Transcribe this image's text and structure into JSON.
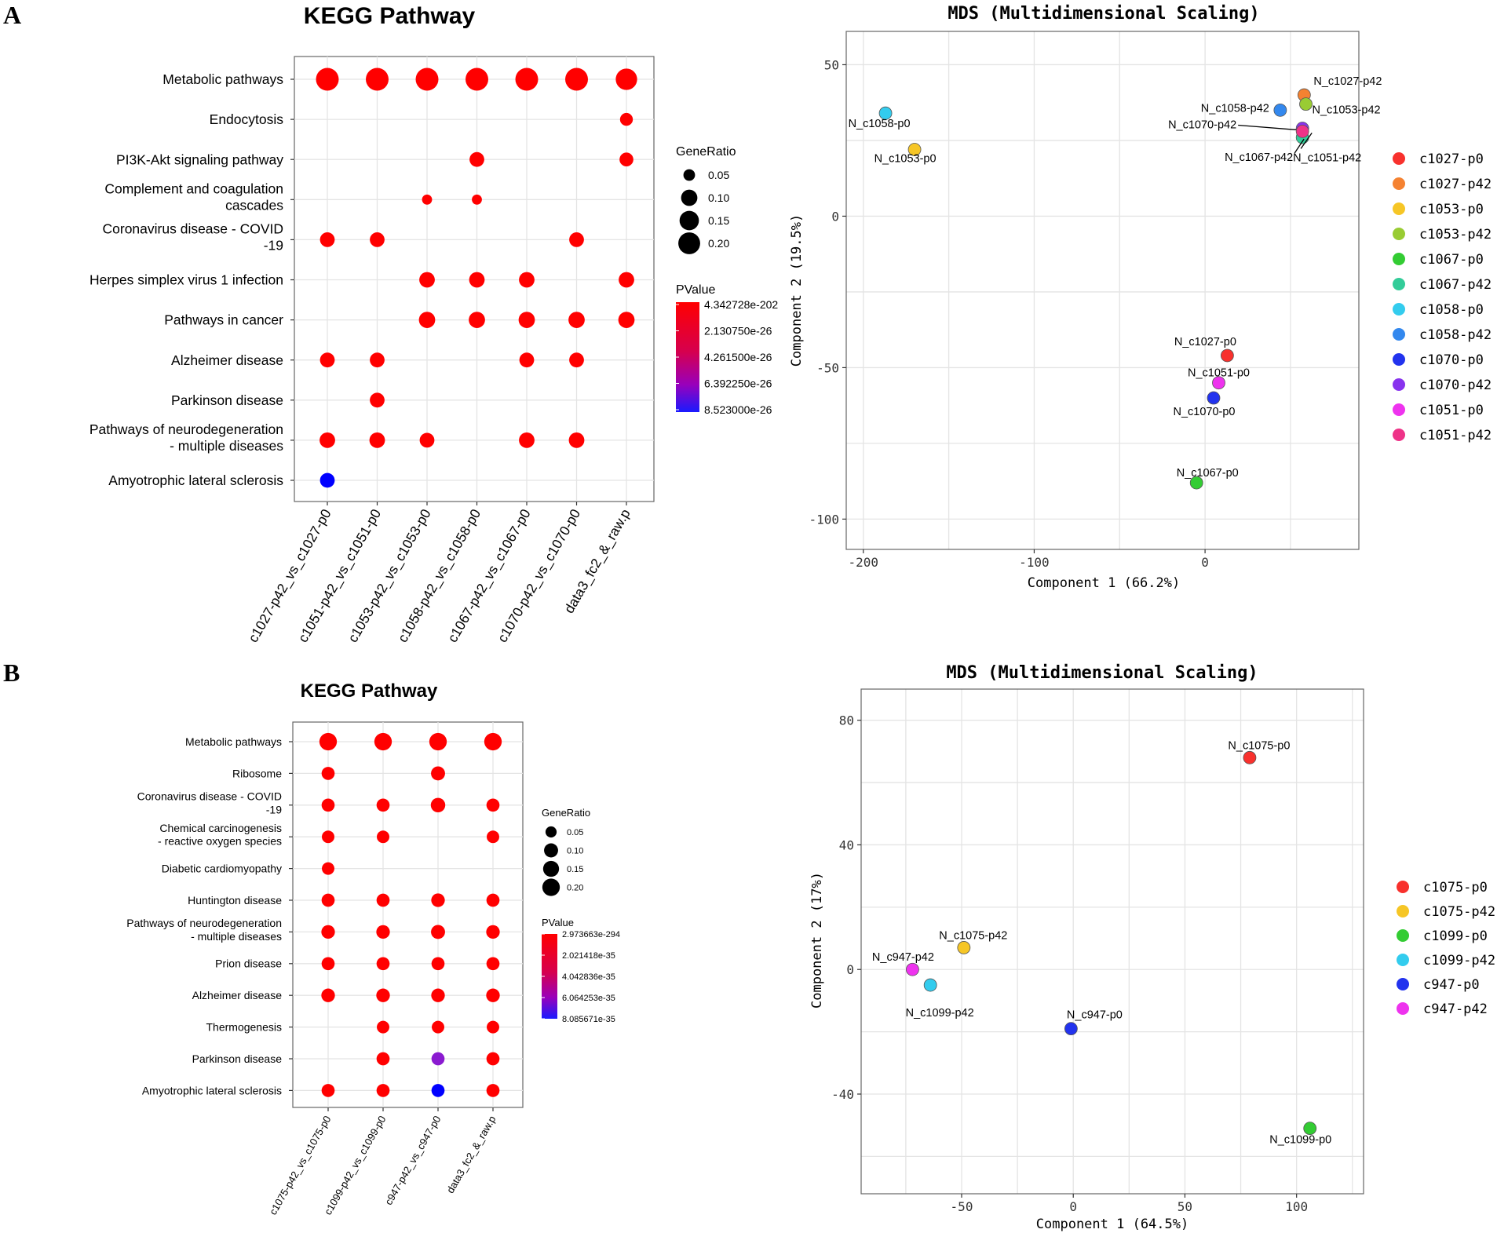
{
  "colors": {
    "red": "#ff0000",
    "blue": "#0000ff",
    "gradient_top": "#ff0000",
    "gradient_mid": "#cc0055",
    "gradient_bottom": "#1a1aff",
    "grid": "#e4e4e4",
    "frame": "#666666"
  },
  "panels": [
    {
      "letter": "A",
      "chart_data": [
        {
          "type": "dotplot",
          "title": "KEGG Pathway",
          "categories_y": [
            "Metabolic pathways",
            "Endocytosis",
            "PI3K-Akt signaling pathway",
            [
              "Complement and coagulation",
              "cascades"
            ],
            [
              "Coronavirus disease - COVID",
              "-19"
            ],
            "Herpes simplex virus 1 infection",
            "Pathways in cancer",
            "Alzheimer disease",
            "Parkinson disease",
            [
              "Pathways of neurodegeneration",
              "- multiple diseases"
            ],
            "Amyotrophic lateral sclerosis"
          ],
          "categories_x": [
            "c1027-p42_vs_c1027-p0",
            "c1051-p42_vs_c1051-p0",
            "c1053-p42_vs_c1053-p0",
            "c1058-p42_vs_c1058-p0",
            "c1067-p42_vs_c1067-p0",
            "c1070-p42_vs_c1070-p0",
            "data3_fc2_&_raw.p"
          ],
          "size_legend": {
            "title": "GeneRatio",
            "values": [
              "0.05",
              "0.10",
              "0.15",
              "0.20"
            ]
          },
          "color_legend": {
            "title": "PValue",
            "labels": [
              "4.342728e-202",
              "2.130750e-26",
              "4.261500e-26",
              "6.392250e-26",
              "8.523000e-26"
            ]
          },
          "points": [
            {
              "x": 0,
              "y": 0,
              "size": 0.22,
              "color": "red"
            },
            {
              "x": 1,
              "y": 0,
              "size": 0.22,
              "color": "red"
            },
            {
              "x": 2,
              "y": 0,
              "size": 0.22,
              "color": "red"
            },
            {
              "x": 3,
              "y": 0,
              "size": 0.22,
              "color": "red"
            },
            {
              "x": 4,
              "y": 0,
              "size": 0.22,
              "color": "red"
            },
            {
              "x": 5,
              "y": 0,
              "size": 0.22,
              "color": "red"
            },
            {
              "x": 6,
              "y": 0,
              "size": 0.19,
              "color": "red"
            },
            {
              "x": 6,
              "y": 1,
              "size": 0.06,
              "color": "red"
            },
            {
              "x": 3,
              "y": 2,
              "size": 0.08,
              "color": "red"
            },
            {
              "x": 6,
              "y": 2,
              "size": 0.07,
              "color": "red"
            },
            {
              "x": 2,
              "y": 3,
              "size": 0.04,
              "color": "red"
            },
            {
              "x": 3,
              "y": 3,
              "size": 0.04,
              "color": "red"
            },
            {
              "x": 0,
              "y": 4,
              "size": 0.08,
              "color": "red"
            },
            {
              "x": 1,
              "y": 4,
              "size": 0.08,
              "color": "red"
            },
            {
              "x": 5,
              "y": 4,
              "size": 0.08,
              "color": "red"
            },
            {
              "x": 2,
              "y": 5,
              "size": 0.09,
              "color": "red"
            },
            {
              "x": 3,
              "y": 5,
              "size": 0.09,
              "color": "red"
            },
            {
              "x": 4,
              "y": 5,
              "size": 0.09,
              "color": "red"
            },
            {
              "x": 6,
              "y": 5,
              "size": 0.09,
              "color": "red"
            },
            {
              "x": 2,
              "y": 6,
              "size": 0.1,
              "color": "red"
            },
            {
              "x": 3,
              "y": 6,
              "size": 0.1,
              "color": "red"
            },
            {
              "x": 4,
              "y": 6,
              "size": 0.1,
              "color": "red"
            },
            {
              "x": 5,
              "y": 6,
              "size": 0.1,
              "color": "red"
            },
            {
              "x": 6,
              "y": 6,
              "size": 0.1,
              "color": "red"
            },
            {
              "x": 0,
              "y": 7,
              "size": 0.08,
              "color": "red"
            },
            {
              "x": 1,
              "y": 7,
              "size": 0.08,
              "color": "red"
            },
            {
              "x": 4,
              "y": 7,
              "size": 0.08,
              "color": "red"
            },
            {
              "x": 5,
              "y": 7,
              "size": 0.08,
              "color": "red"
            },
            {
              "x": 1,
              "y": 8,
              "size": 0.08,
              "color": "red"
            },
            {
              "x": 0,
              "y": 9,
              "size": 0.09,
              "color": "red"
            },
            {
              "x": 1,
              "y": 9,
              "size": 0.09,
              "color": "red"
            },
            {
              "x": 2,
              "y": 9,
              "size": 0.08,
              "color": "red"
            },
            {
              "x": 4,
              "y": 9,
              "size": 0.09,
              "color": "red"
            },
            {
              "x": 5,
              "y": 9,
              "size": 0.09,
              "color": "red"
            },
            {
              "x": 0,
              "y": 10,
              "size": 0.08,
              "color": "blue"
            }
          ]
        },
        {
          "type": "scatter",
          "title": "MDS (Multidimensional Scaling)",
          "xlabel": "Component 1 (66.2%)",
          "ylabel": "Component 2 (19.5%)",
          "xlim": [
            -210,
            90
          ],
          "ylim": [
            -110,
            61
          ],
          "xticks": [
            -200,
            -100,
            0
          ],
          "yticks": [
            50,
            0,
            -50,
            -100
          ],
          "xgrid": [
            -200,
            -150,
            -100,
            -50,
            0,
            50
          ],
          "ygrid": [
            50,
            25,
            0,
            -25,
            -50,
            -75,
            -100
          ],
          "legend": [
            {
              "name": "c1027-p0",
              "color": "#f8312d"
            },
            {
              "name": "c1027-p42",
              "color": "#f58231"
            },
            {
              "name": "c1053-p0",
              "color": "#f6c626"
            },
            {
              "name": "c1053-p42",
              "color": "#99cc33"
            },
            {
              "name": "c1067-p0",
              "color": "#33cc33"
            },
            {
              "name": "c1067-p42",
              "color": "#33cc99"
            },
            {
              "name": "c1058-p0",
              "color": "#33ccee"
            },
            {
              "name": "c1058-p42",
              "color": "#3388ee"
            },
            {
              "name": "c1070-p0",
              "color": "#2233ee"
            },
            {
              "name": "c1070-p42",
              "color": "#8833ee"
            },
            {
              "name": "c1051-p0",
              "color": "#ee33ee"
            },
            {
              "name": "c1051-p42",
              "color": "#ee3388"
            }
          ],
          "points": [
            {
              "x": 58,
              "y": 40,
              "label": "N_c1027-p42",
              "color": "#f58231"
            },
            {
              "x": 44,
              "y": 35,
              "label": "N_c1058-p42",
              "color": "#3388ee"
            },
            {
              "x": 59,
              "y": 37,
              "label": "N_c1053-p42",
              "color": "#99cc33"
            },
            {
              "x": 57,
              "y": 26,
              "label": "N_c1067-p42",
              "color": "#33cc99"
            },
            {
              "x": 57,
              "y": 29,
              "label": "N_c1070-p42",
              "color": "#8833ee"
            },
            {
              "x": 57,
              "y": 28,
              "label": "N_c1051-p42",
              "color": "#ee3388"
            },
            {
              "x": -187,
              "y": 34,
              "label": "N_c1058-p0",
              "color": "#33ccee"
            },
            {
              "x": -170,
              "y": 22,
              "label": "N_c1053-p0",
              "color": "#f6c626"
            },
            {
              "x": 13,
              "y": -46,
              "label": "N_c1027-p0",
              "color": "#f8312d"
            },
            {
              "x": 8,
              "y": -55,
              "label": "N_c1051-p0",
              "color": "#ee33ee"
            },
            {
              "x": 5,
              "y": -60,
              "label": "N_c1070-p0",
              "color": "#2233ee"
            },
            {
              "x": -5,
              "y": -88,
              "label": "N_c1067-p0",
              "color": "#33cc33"
            }
          ]
        }
      ]
    },
    {
      "letter": "B",
      "chart_data": [
        {
          "type": "dotplot",
          "title": "KEGG Pathway",
          "categories_y": [
            "Metabolic pathways",
            "Ribosome",
            [
              "Coronavirus disease - COVID",
              "-19"
            ],
            [
              "Chemical carcinogenesis",
              "- reactive oxygen species"
            ],
            "Diabetic cardiomyopathy",
            "Huntington disease",
            [
              "Pathways of neurodegeneration",
              "- multiple diseases"
            ],
            "Prion disease",
            "Alzheimer disease",
            "Thermogenesis",
            "Parkinson disease",
            "Amyotrophic lateral sclerosis"
          ],
          "categories_x": [
            "c1075-p42_vs_c1075-p0",
            "c1099-p42_vs_c1099-p0",
            "c947-p42_vs_c947-p0",
            "data3_fc2_&_raw.p"
          ],
          "size_legend": {
            "title": "GeneRatio",
            "values": [
              "0.05",
              "0.10",
              "0.15",
              "0.20"
            ]
          },
          "color_legend": {
            "title": "PValue",
            "labels": [
              "2.973663e-294",
              "2.021418e-35",
              "4.042836e-35",
              "6.064253e-35",
              "8.085671e-35"
            ]
          },
          "points": [
            {
              "x": 0,
              "y": 0,
              "size": 0.2,
              "color": "red"
            },
            {
              "x": 1,
              "y": 0,
              "size": 0.2,
              "color": "red"
            },
            {
              "x": 2,
              "y": 0,
              "size": 0.2,
              "color": "red"
            },
            {
              "x": 3,
              "y": 0,
              "size": 0.2,
              "color": "red"
            },
            {
              "x": 0,
              "y": 1,
              "size": 0.08,
              "color": "red"
            },
            {
              "x": 2,
              "y": 1,
              "size": 0.1,
              "color": "red"
            },
            {
              "x": 0,
              "y": 2,
              "size": 0.08,
              "color": "red"
            },
            {
              "x": 1,
              "y": 2,
              "size": 0.08,
              "color": "red"
            },
            {
              "x": 2,
              "y": 2,
              "size": 0.11,
              "color": "red"
            },
            {
              "x": 3,
              "y": 2,
              "size": 0.08,
              "color": "red"
            },
            {
              "x": 0,
              "y": 3,
              "size": 0.07,
              "color": "red"
            },
            {
              "x": 1,
              "y": 3,
              "size": 0.07,
              "color": "red"
            },
            {
              "x": 3,
              "y": 3,
              "size": 0.07,
              "color": "red"
            },
            {
              "x": 0,
              "y": 4,
              "size": 0.07,
              "color": "red"
            },
            {
              "x": 0,
              "y": 5,
              "size": 0.08,
              "color": "red"
            },
            {
              "x": 1,
              "y": 5,
              "size": 0.08,
              "color": "red"
            },
            {
              "x": 2,
              "y": 5,
              "size": 0.09,
              "color": "red"
            },
            {
              "x": 3,
              "y": 5,
              "size": 0.08,
              "color": "red"
            },
            {
              "x": 0,
              "y": 6,
              "size": 0.09,
              "color": "red"
            },
            {
              "x": 1,
              "y": 6,
              "size": 0.09,
              "color": "red"
            },
            {
              "x": 2,
              "y": 6,
              "size": 0.1,
              "color": "red"
            },
            {
              "x": 3,
              "y": 6,
              "size": 0.09,
              "color": "red"
            },
            {
              "x": 0,
              "y": 7,
              "size": 0.08,
              "color": "red"
            },
            {
              "x": 1,
              "y": 7,
              "size": 0.08,
              "color": "red"
            },
            {
              "x": 2,
              "y": 7,
              "size": 0.08,
              "color": "red"
            },
            {
              "x": 3,
              "y": 7,
              "size": 0.08,
              "color": "red"
            },
            {
              "x": 0,
              "y": 8,
              "size": 0.09,
              "color": "red"
            },
            {
              "x": 1,
              "y": 8,
              "size": 0.09,
              "color": "red"
            },
            {
              "x": 2,
              "y": 8,
              "size": 0.09,
              "color": "red"
            },
            {
              "x": 3,
              "y": 8,
              "size": 0.09,
              "color": "red"
            },
            {
              "x": 1,
              "y": 9,
              "size": 0.07,
              "color": "red"
            },
            {
              "x": 2,
              "y": 9,
              "size": 0.07,
              "color": "red"
            },
            {
              "x": 3,
              "y": 9,
              "size": 0.07,
              "color": "red"
            },
            {
              "x": 1,
              "y": 10,
              "size": 0.08,
              "color": "red"
            },
            {
              "x": 2,
              "y": 10,
              "size": 0.08,
              "color": "purple"
            },
            {
              "x": 3,
              "y": 10,
              "size": 0.08,
              "color": "red"
            },
            {
              "x": 0,
              "y": 11,
              "size": 0.08,
              "color": "red"
            },
            {
              "x": 1,
              "y": 11,
              "size": 0.08,
              "color": "red"
            },
            {
              "x": 2,
              "y": 11,
              "size": 0.08,
              "color": "blue"
            },
            {
              "x": 3,
              "y": 11,
              "size": 0.08,
              "color": "red"
            }
          ]
        },
        {
          "type": "scatter",
          "title": "MDS (Multidimensional Scaling)",
          "xlabel": "Component 1 (64.5%)",
          "ylabel": "Component 2 (17%)",
          "xlim": [
            -95,
            130
          ],
          "ylim": [
            -72,
            90
          ],
          "xticks": [
            -50,
            0,
            50,
            100
          ],
          "yticks": [
            80,
            40,
            0,
            -40
          ],
          "xgrid": [
            -75,
            -50,
            -25,
            0,
            25,
            50,
            75,
            100,
            125
          ],
          "ygrid": [
            80,
            60,
            40,
            20,
            0,
            -20,
            -40,
            -60
          ],
          "legend": [
            {
              "name": "c1075-p0",
              "color": "#f8312d"
            },
            {
              "name": "c1075-p42",
              "color": "#f6c626"
            },
            {
              "name": "c1099-p0",
              "color": "#33cc33"
            },
            {
              "name": "c1099-p42",
              "color": "#33ccee"
            },
            {
              "name": "c947-p0",
              "color": "#2233ee"
            },
            {
              "name": "c947-p42",
              "color": "#ee33ee"
            }
          ],
          "points": [
            {
              "x": 79,
              "y": 68,
              "label": "N_c1075-p0",
              "color": "#f8312d"
            },
            {
              "x": -49,
              "y": 7,
              "label": "N_c1075-p42",
              "color": "#f6c626"
            },
            {
              "x": -72,
              "y": 0,
              "label": "N_c947-p42",
              "color": "#ee33ee"
            },
            {
              "x": -64,
              "y": -5,
              "label": "N_c1099-p42",
              "color": "#33ccee"
            },
            {
              "x": -1,
              "y": -19,
              "label": "N_c947-p0",
              "color": "#2233ee"
            },
            {
              "x": 106,
              "y": -51,
              "label": "N_c1099-p0",
              "color": "#33cc33"
            }
          ]
        }
      ]
    }
  ]
}
